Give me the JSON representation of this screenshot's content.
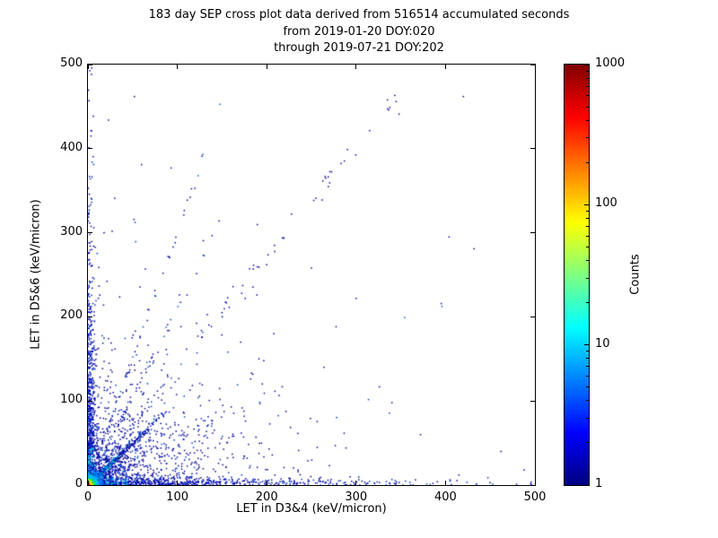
{
  "chart_data": {
    "type": "scatter",
    "title_lines": [
      "183 day SEP cross plot data derived from 516514 accumulated seconds",
      "from 2019-01-20 DOY:020",
      "through 2019-07-21 DOY:202"
    ],
    "xlabel": "LET in D3&4 (keV/micron)",
    "ylabel": "LET in D5&6 (keV/micron)",
    "xlim": [
      0,
      500
    ],
    "ylim": [
      0,
      500
    ],
    "x_ticks": [
      0,
      100,
      200,
      300,
      400,
      500
    ],
    "y_ticks": [
      0,
      100,
      200,
      300,
      400,
      500
    ],
    "grid": false,
    "colorbar": {
      "label": "Counts",
      "scale": "log",
      "min": 1,
      "max": 1000,
      "ticks": [
        1,
        10,
        100,
        1000
      ],
      "colormap": "jet",
      "gradient_stops": [
        "#000080",
        "#0000ff",
        "#00ffff",
        "#ffff00",
        "#ff0000",
        "#800000"
      ],
      "gradient_positions": [
        0,
        12.5,
        37.5,
        62.5,
        87.5,
        100
      ]
    },
    "clusters": [
      {
        "name": "background-scatter",
        "dist": "exp2d",
        "n": 1000,
        "xscale": 55,
        "yscale": 50,
        "colors": [
          [
            "#000099",
            0.85
          ],
          [
            "#0033cc",
            0.15
          ]
        ]
      },
      {
        "name": "radial-spurs",
        "dist": "spurs",
        "n": 450,
        "slopes": [
          0.35,
          0.55,
          0.75,
          1.4,
          2.1,
          3.0
        ],
        "scale": 60,
        "jitter": 2,
        "colors": [
          [
            "#0000aa",
            0.8
          ],
          [
            "#0055cc",
            0.2
          ]
        ]
      },
      {
        "name": "bottom-axis-band",
        "dist": "axis-x",
        "n": 650,
        "xscale": 120,
        "ysigma": 4,
        "near": {
          "limit": 45,
          "frac": 0.4,
          "color": "#00bbdd"
        },
        "colors": [
          [
            "#0000aa",
            0.65
          ],
          [
            "#0033cc",
            0.35
          ]
        ]
      },
      {
        "name": "left-axis-band",
        "dist": "axis-y",
        "n": 650,
        "yscale": 100,
        "xsigma": 4,
        "near": {
          "limit": 45,
          "frac": 0.4,
          "color": "#00bbdd"
        },
        "colors": [
          [
            "#0000aa",
            0.65
          ],
          [
            "#0033cc",
            0.35
          ]
        ]
      },
      {
        "name": "upper-diagonal-band",
        "dist": "band",
        "n": 40,
        "y0": 170,
        "y1": 465,
        "k": 0.74,
        "jitter": 5,
        "colors": [
          [
            "#000099",
            1
          ]
        ]
      },
      {
        "name": "outliers",
        "dist": "points",
        "colors": [
          [
            "#000099",
            1
          ]
        ],
        "points": [
          [
            335,
            458
          ],
          [
            348,
            441
          ],
          [
            420,
            462
          ],
          [
            52,
            462
          ],
          [
            23,
            434
          ],
          [
            60,
            381
          ],
          [
            93,
            377
          ],
          [
            18,
            300
          ],
          [
            30,
            341
          ],
          [
            404,
            295
          ],
          [
            432,
            281
          ],
          [
            462,
            40
          ],
          [
            488,
            18
          ],
          [
            415,
            12
          ],
          [
            250,
            258
          ],
          [
            262,
            339
          ],
          [
            300,
            222
          ],
          [
            150,
            205
          ],
          [
            208,
            180
          ],
          [
            176,
            222
          ],
          [
            340,
            98
          ],
          [
            372,
            60
          ],
          [
            264,
            140
          ]
        ]
      },
      {
        "name": "diagonal-streak",
        "dist": "diag",
        "n": 550,
        "slope": 1.0,
        "scale": 24,
        "jitter": 1.2,
        "near": {
          "limit": 35,
          "frac": 0.45,
          "color": "#00bbdd"
        },
        "colors": [
          [
            "#0033cc",
            0.45
          ],
          [
            "#000099",
            0.55
          ]
        ]
      },
      {
        "name": "core-hot",
        "dist": "core",
        "n": 1000,
        "scale": 4.5,
        "rings": [
          [
            1.2,
            "#aa0000"
          ],
          [
            2.2,
            "#ee2200"
          ],
          [
            3.2,
            "#ff7700"
          ],
          [
            4.5,
            "#ffdd00"
          ],
          [
            6.5,
            "#99ee00"
          ],
          [
            9,
            "#00dd88"
          ],
          [
            13,
            "#00bbee"
          ],
          [
            20,
            "#0077ff"
          ],
          [
            40,
            "#0022cc"
          ],
          [
            10000,
            "#000099"
          ]
        ]
      }
    ]
  }
}
